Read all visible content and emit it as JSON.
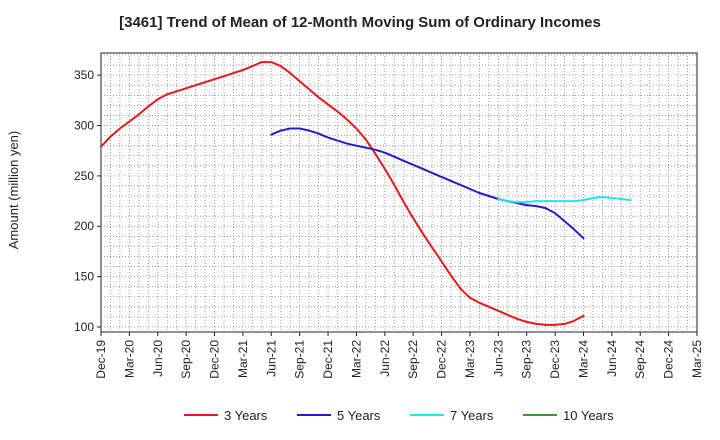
{
  "chart_data": {
    "type": "line",
    "title": "[3461]  Trend of Mean of 12-Month Moving Sum of Ordinary Incomes",
    "xlabel": "",
    "ylabel": "Amount (million yen)",
    "ylim": [
      95,
      372
    ],
    "yticks": [
      100,
      150,
      200,
      250,
      300,
      350
    ],
    "x_start": "Dec-19",
    "x_ticks": [
      "Dec-19",
      "Mar-20",
      "Jun-20",
      "Sep-20",
      "Dec-20",
      "Mar-21",
      "Jun-21",
      "Sep-21",
      "Dec-21",
      "Mar-22",
      "Jun-22",
      "Sep-22",
      "Dec-22",
      "Mar-23",
      "Jun-23",
      "Sep-23",
      "Dec-23",
      "Mar-24",
      "Jun-24",
      "Sep-24",
      "Dec-24",
      "Mar-25"
    ],
    "grid": true,
    "legend_position": "bottom",
    "series": [
      {
        "name": "3 Years",
        "color": "#e31a1c",
        "start_index": 0,
        "values": [
          279,
          289,
          297,
          304,
          311,
          319,
          326,
          331,
          334,
          337,
          340,
          343,
          346,
          349,
          352,
          355,
          359,
          363,
          363,
          359,
          352,
          344,
          336,
          328,
          321,
          314,
          306,
          297,
          286,
          272,
          257,
          241,
          224,
          208,
          193,
          179,
          165,
          151,
          138,
          129,
          124,
          120,
          116,
          112,
          108,
          105,
          103,
          102,
          102,
          103,
          106,
          111
        ]
      },
      {
        "name": "5 Years",
        "color": "#1f1fc8",
        "start_index": 18,
        "values": [
          291,
          295,
          297,
          297,
          295,
          292,
          288,
          285,
          282,
          280,
          278,
          276,
          273,
          269,
          265,
          261,
          257,
          253,
          249,
          245,
          241,
          237,
          233,
          230,
          227,
          225,
          223,
          221,
          220,
          218,
          213,
          205,
          197,
          188
        ]
      },
      {
        "name": "7 Years",
        "color": "#1ee6f0",
        "start_index": 42,
        "values": [
          227,
          225,
          224,
          224,
          225,
          225,
          225,
          225,
          225,
          226,
          228,
          229,
          228,
          227,
          226
        ]
      },
      {
        "name": "10 Years",
        "color": "#2ca02c",
        "start_index": 0,
        "values": []
      }
    ]
  }
}
